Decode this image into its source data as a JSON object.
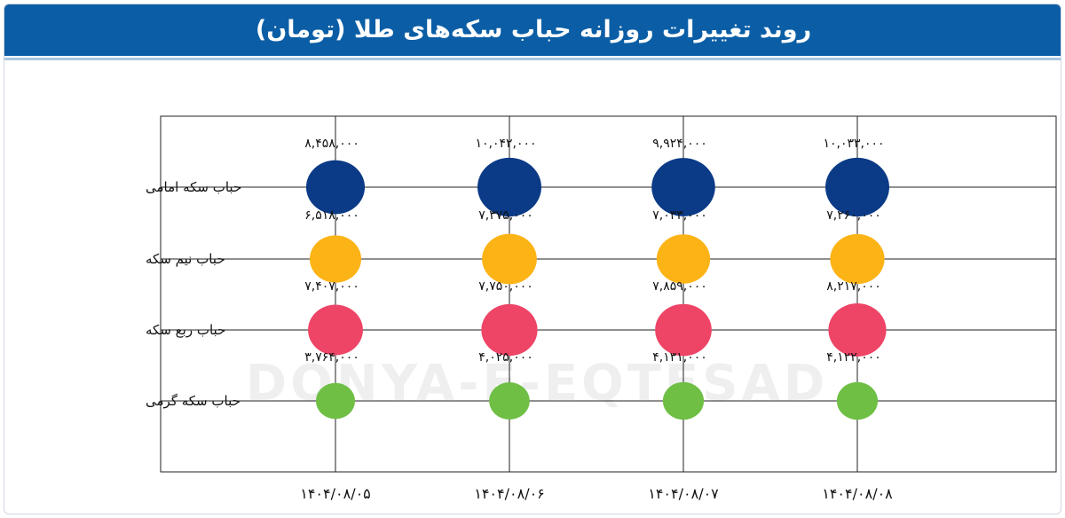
{
  "header": {
    "title": "روند تغییرات روزانه حباب سکه‌های طلا (تومان)"
  },
  "watermark": {
    "text": "DONYA-E-EQTESAD"
  },
  "colors": {
    "header_bg": "#0b5ea5",
    "emami": "#0b3a86",
    "nim": "#fcb315",
    "rob": "#ee4466",
    "gerami": "#6ebf44"
  },
  "chart_data": {
    "type": "bubble",
    "title": "روند تغییرات روزانه حباب سکه‌های طلا (تومان)",
    "x": [
      "۱۴۰۴/۰۸/۰۵",
      "۱۴۰۴/۰۸/۰۶",
      "۱۴۰۴/۰۸/۰۷",
      "۱۴۰۴/۰۸/۰۸"
    ],
    "categories": [
      "حباب سکه امامی",
      "حباب نیم سکه",
      "حباب ربع سکه",
      "حباب سکه گرمی"
    ],
    "series": [
      {
        "name": "حباب سکه امامی",
        "color": "#0b3a86",
        "values": [
          8458000,
          10042000,
          9924000,
          10033000
        ],
        "labels": [
          "۸,۴۵۸,۰۰۰",
          "۱۰,۰۴۲,۰۰۰",
          "۹,۹۲۴,۰۰۰",
          "۱۰,۰۳۳,۰۰۰"
        ]
      },
      {
        "name": "حباب نیم سکه",
        "color": "#fcb315",
        "values": [
          6518000,
          7375000,
          7033000,
          7260000
        ],
        "labels": [
          "۶,۵۱۸,۰۰۰",
          "۷,۳۷۵,۰۰۰",
          "۷,۰۳۳,۰۰۰",
          "۷,۲۶۰,۰۰۰"
        ]
      },
      {
        "name": "حباب ربع سکه",
        "color": "#ee4466",
        "values": [
          7407000,
          7750000,
          7859000,
          8217000
        ],
        "labels": [
          "۷,۴۰۷,۰۰۰",
          "۷,۷۵۰,۰۰۰",
          "۷,۸۵۹,۰۰۰",
          "۸,۲۱۷,۰۰۰"
        ]
      },
      {
        "name": "حباب سکه گرمی",
        "color": "#6ebf44",
        "values": [
          3764000,
          4025000,
          4131000,
          4122000
        ],
        "labels": [
          "۳,۷۶۴,۰۰۰",
          "۴,۰۲۵,۰۰۰",
          "۴,۱۳۱,۰۰۰",
          "۴,۱۲۲,۰۰۰"
        ]
      }
    ],
    "grid": true,
    "legend": "none"
  }
}
